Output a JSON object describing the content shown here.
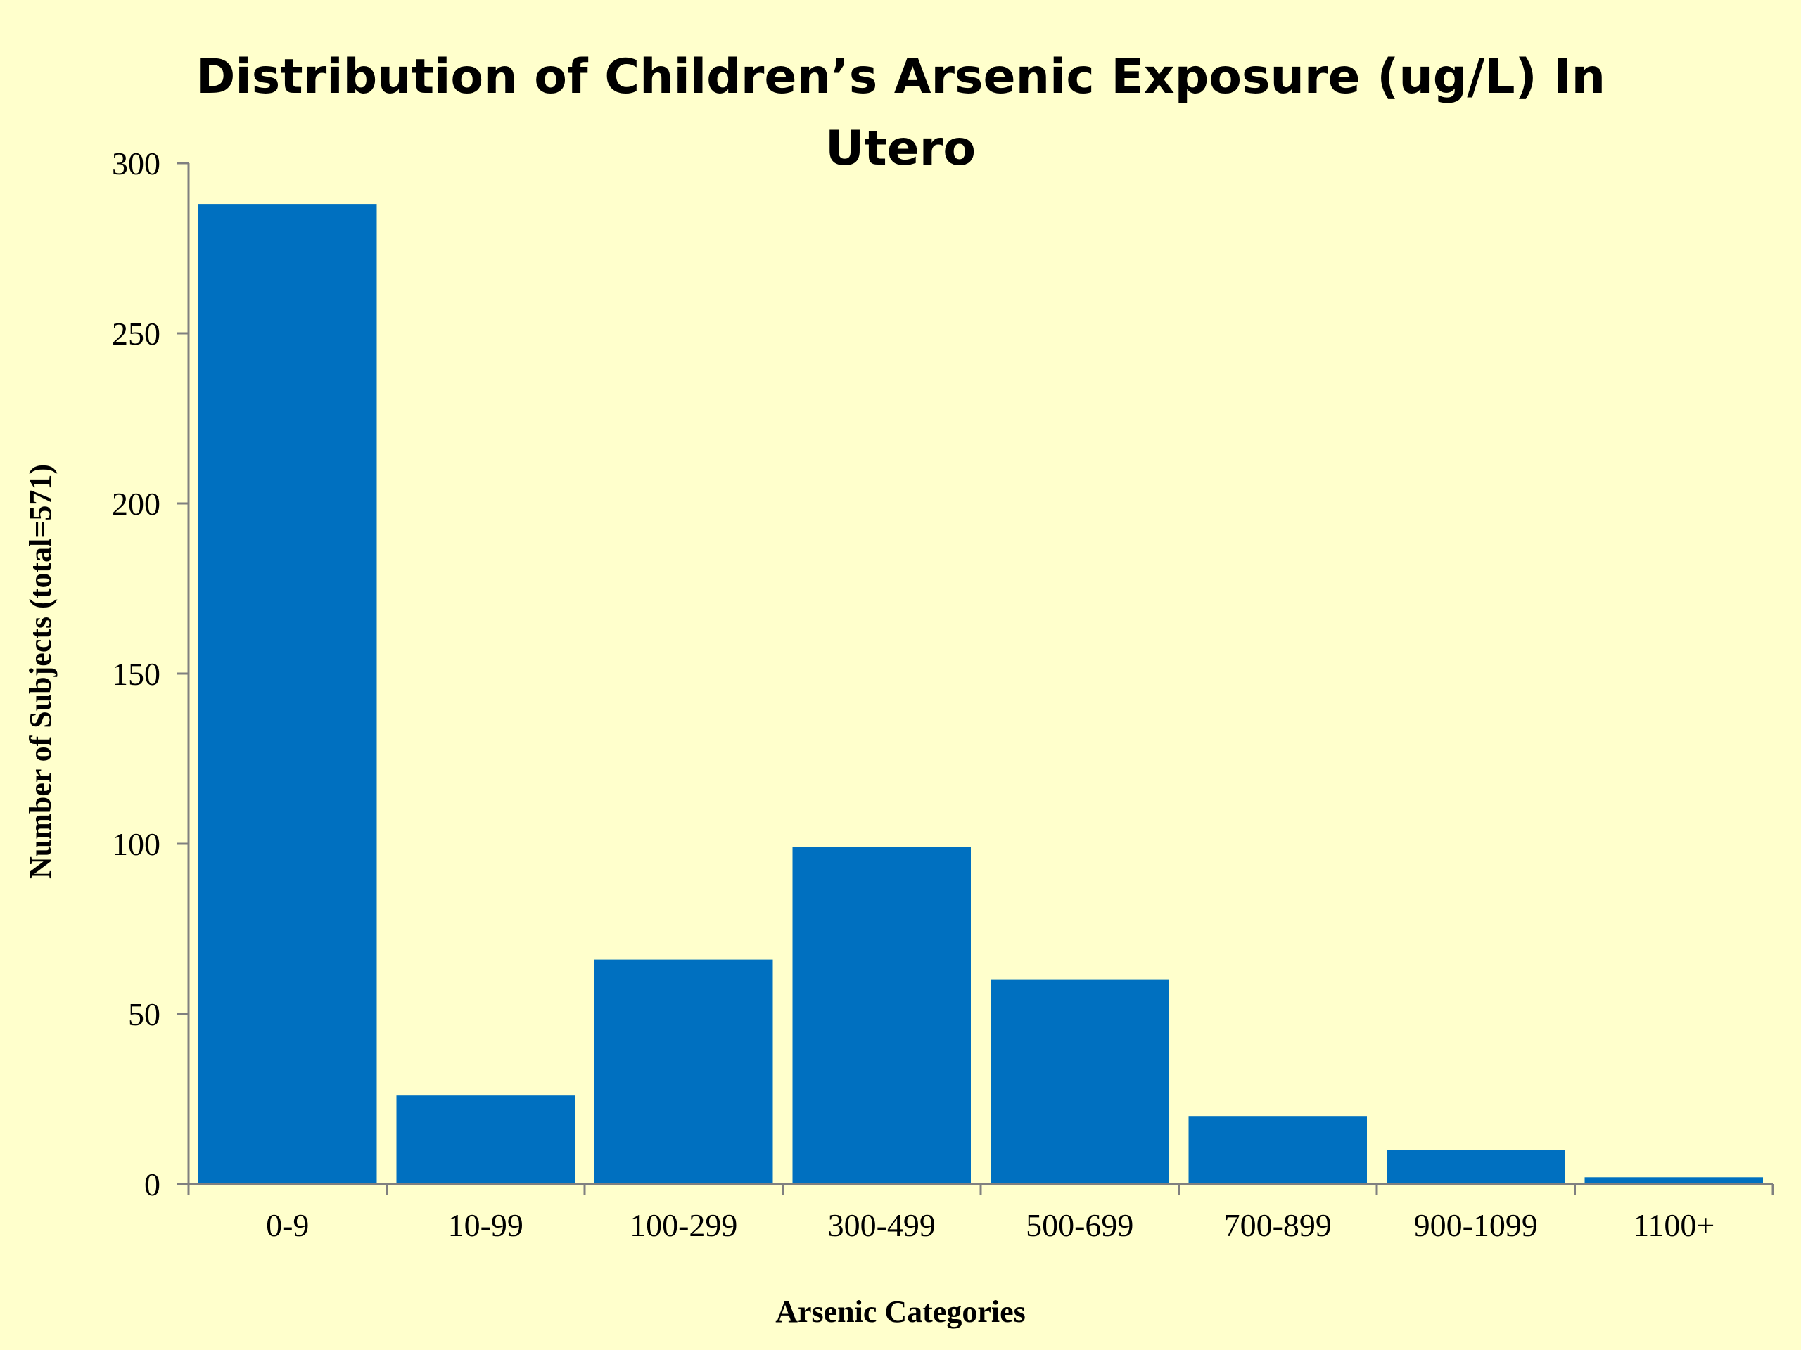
{
  "chart_data": {
    "type": "bar",
    "title_lines": [
      "Distribution of Children’s Arsenic Exposure (ug/L) In",
      "Utero"
    ],
    "xlabel": "Arsenic Categories",
    "ylabel": "Number of Subjects (total=571)",
    "categories": [
      "0-9",
      "10-99",
      "100-299",
      "300-499",
      "500-699",
      "700-899",
      "900-1099",
      "1100+"
    ],
    "values": [
      288,
      26,
      66,
      99,
      60,
      20,
      10,
      2
    ],
    "ylim": [
      0,
      300
    ],
    "yticks": [
      0,
      50,
      100,
      150,
      200,
      250,
      300
    ],
    "grid": false,
    "legend": "none",
    "colors": {
      "bar": "#0070c0",
      "background": "#ffffcc",
      "axis": "#808080"
    }
  }
}
